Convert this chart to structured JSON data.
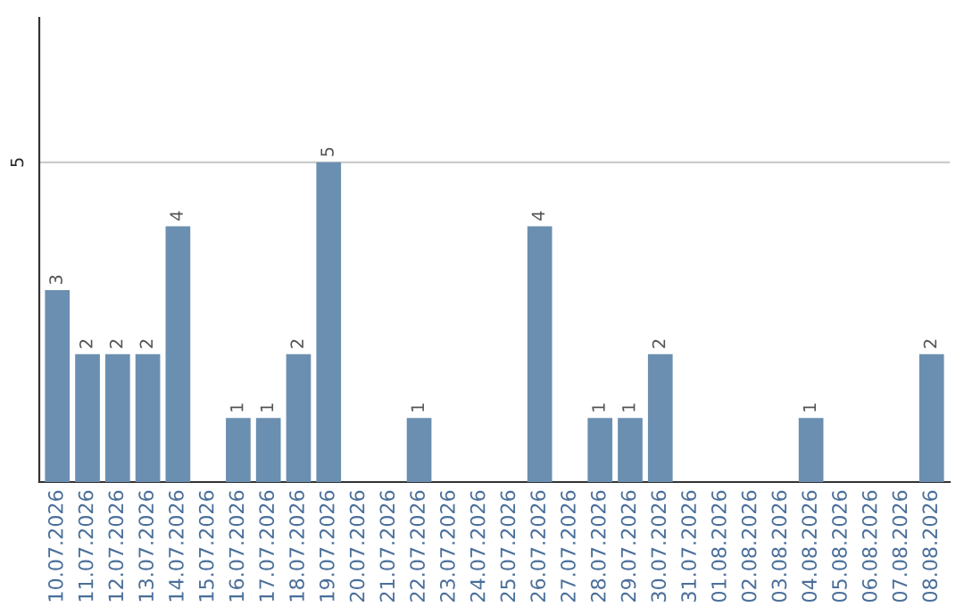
{
  "chart_data": {
    "type": "bar",
    "categories": [
      "10.07.2026",
      "11.07.2026",
      "12.07.2026",
      "13.07.2026",
      "14.07.2026",
      "15.07.2026",
      "16.07.2026",
      "17.07.2026",
      "18.07.2026",
      "19.07.2026",
      "20.07.2026",
      "21.07.2026",
      "22.07.2026",
      "23.07.2026",
      "24.07.2026",
      "25.07.2026",
      "26.07.2026",
      "27.07.2026",
      "28.07.2026",
      "29.07.2026",
      "30.07.2026",
      "31.07.2026",
      "01.08.2026",
      "02.08.2026",
      "03.08.2026",
      "04.08.2026",
      "05.08.2026",
      "06.08.2026",
      "07.08.2026",
      "08.08.2026"
    ],
    "values": [
      3,
      2,
      2,
      2,
      4,
      0,
      1,
      1,
      2,
      5,
      0,
      0,
      1,
      0,
      0,
      0,
      4,
      0,
      1,
      1,
      2,
      0,
      0,
      0,
      0,
      1,
      0,
      0,
      0,
      2
    ],
    "value_labels": [
      "3",
      "2",
      "2",
      "2",
      "4",
      null,
      "1",
      "1",
      "2",
      "5",
      null,
      null,
      "1",
      null,
      null,
      null,
      "4",
      null,
      "1",
      "1",
      "2",
      null,
      null,
      null,
      null,
      "1",
      null,
      null,
      null,
      "2"
    ],
    "color": "#6b8fb0",
    "ylim": [
      0,
      7.26
    ],
    "yticks": [
      5
    ],
    "grid": "y"
  }
}
